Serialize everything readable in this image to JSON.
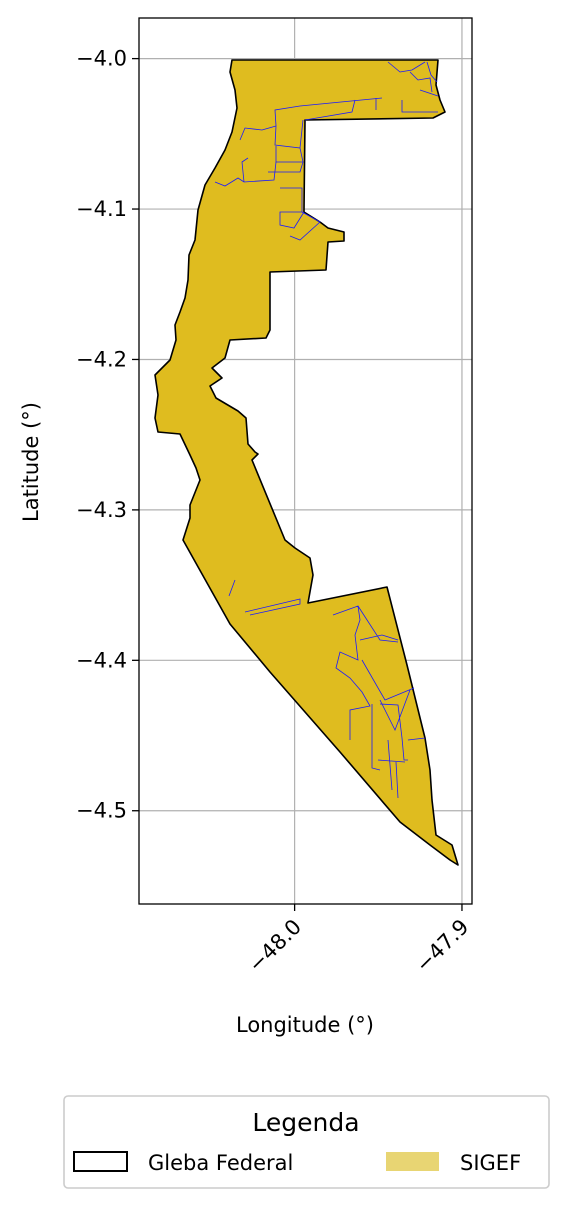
{
  "chart_data": {
    "type": "map",
    "xlabel": "Longitude (°)",
    "ylabel": "Latitude (°)",
    "xlim": [
      -48.093,
      -47.894
    ],
    "ylim": [
      -4.562,
      -3.973
    ],
    "x_ticks": [
      {
        "value": -48.0,
        "label": "−48.0"
      },
      {
        "value": -47.9,
        "label": "−47.9"
      }
    ],
    "y_ticks": [
      {
        "value": -4.0,
        "label": "−4.0"
      },
      {
        "value": -4.1,
        "label": "−4.1"
      },
      {
        "value": -4.2,
        "label": "−4.2"
      },
      {
        "value": -4.3,
        "label": "−4.3"
      },
      {
        "value": -4.4,
        "label": "−4.4"
      },
      {
        "value": -4.5,
        "label": "−4.5"
      }
    ],
    "grid": true,
    "legend": {
      "title": "Legenda",
      "placement": "bottom-center",
      "entries": [
        {
          "label": "Gleba Federal",
          "style": "outline",
          "color": "#000000"
        },
        {
          "label": "SIGEF",
          "style": "fill",
          "color": "#e8d573"
        }
      ]
    },
    "colors": {
      "gleba_fill": "#dfbc1f",
      "gleba_edge": "#000000",
      "sigef_edge": "#1a1aff",
      "grid": "#b0b0b0"
    },
    "gleba_outline": [
      [
        -48.031,
        -4.0
      ],
      [
        -47.896,
        -4.0
      ],
      [
        -47.899,
        -4.02
      ],
      [
        -47.897,
        -4.03
      ],
      [
        -47.904,
        -4.04
      ],
      [
        -47.984,
        -4.04
      ],
      [
        -47.984,
        -4.1
      ],
      [
        -47.976,
        -4.11
      ],
      [
        -47.958,
        -4.115
      ],
      [
        -47.958,
        -4.121
      ],
      [
        -47.969,
        -4.122
      ],
      [
        -47.97,
        -4.14
      ],
      [
        -47.991,
        -4.145
      ],
      [
        -47.99,
        -4.17
      ],
      [
        -47.992,
        -4.184
      ],
      [
        -48.025,
        -4.186
      ],
      [
        -48.032,
        -4.2
      ],
      [
        -48.031,
        -4.21
      ],
      [
        -48.046,
        -4.215
      ],
      [
        -48.04,
        -4.222
      ],
      [
        -48.046,
        -4.23
      ],
      [
        -48.047,
        -4.237
      ],
      [
        -48.036,
        -4.245
      ],
      [
        -48.025,
        -4.235
      ],
      [
        -48.017,
        -4.245
      ],
      [
        -48.014,
        -4.267
      ],
      [
        -48.011,
        -4.272
      ],
      [
        -48.014,
        -4.279
      ],
      [
        -47.998,
        -4.318
      ],
      [
        -47.978,
        -4.325
      ],
      [
        -47.975,
        -4.34
      ],
      [
        -47.976,
        -4.354
      ],
      [
        -47.955,
        -4.347
      ],
      [
        -47.936,
        -4.348
      ],
      [
        -47.907,
        -4.455
      ],
      [
        -47.901,
        -4.48
      ],
      [
        -47.898,
        -4.51
      ],
      [
        -47.898,
        -4.52
      ],
      [
        -47.884,
        -4.532
      ],
      [
        -47.883,
        -4.51
      ],
      [
        -47.896,
        -4.48
      ],
      [
        -47.9,
        -4.455
      ],
      [
        -47.948,
        -4.395
      ],
      [
        -47.96,
        -4.38
      ],
      [
        -47.99,
        -4.35
      ],
      [
        -48.013,
        -4.34
      ],
      [
        -48.04,
        -4.318
      ],
      [
        -48.055,
        -4.3
      ],
      [
        -48.058,
        -4.285
      ],
      [
        -48.068,
        -4.255
      ],
      [
        -48.082,
        -4.248
      ],
      [
        -48.082,
        -4.23
      ],
      [
        -48.08,
        -4.212
      ],
      [
        -48.073,
        -4.2
      ],
      [
        -48.074,
        -4.18
      ],
      [
        -48.07,
        -4.16
      ],
      [
        -48.065,
        -4.14
      ],
      [
        -48.059,
        -4.1
      ],
      [
        -48.054,
        -4.08
      ],
      [
        -48.044,
        -4.055
      ],
      [
        -48.038,
        -4.03
      ],
      [
        -48.033,
        -4.01
      ]
    ]
  }
}
